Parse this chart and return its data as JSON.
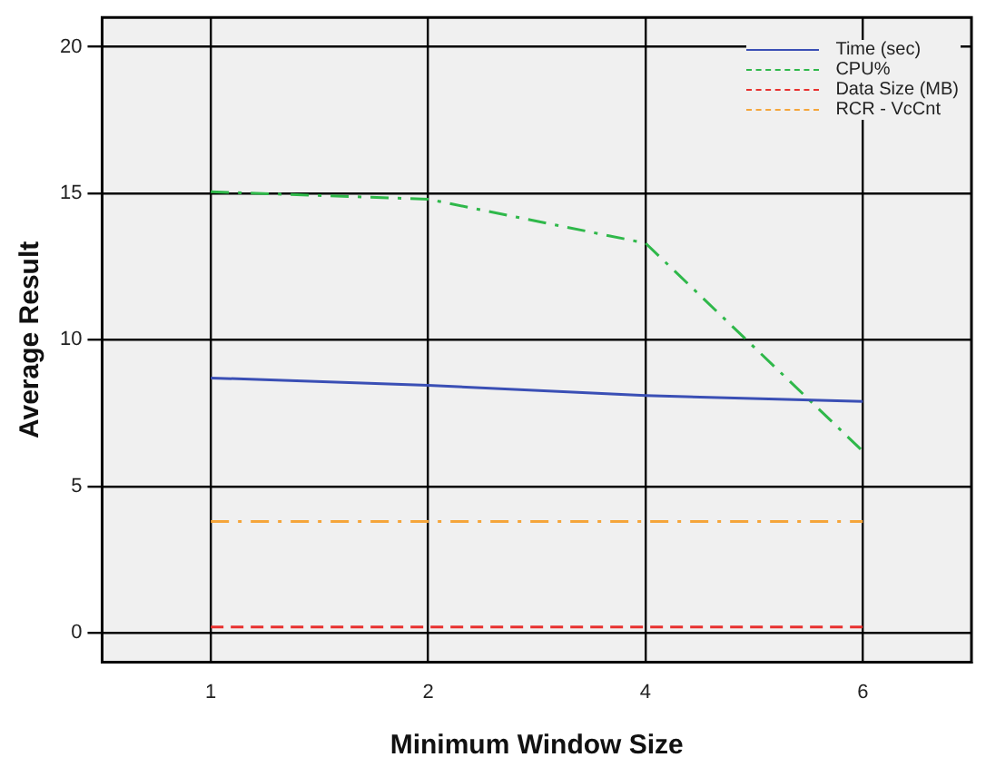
{
  "chart_data": {
    "type": "line",
    "xlabel": "Minimum Window Size",
    "ylabel": "Average Result",
    "categories": [
      "1",
      "2",
      "4",
      "6"
    ],
    "series": [
      {
        "name": "Time (sec)",
        "color": "#3a4fb5",
        "line_style": "solid",
        "values": [
          8.7,
          8.45,
          8.1,
          7.9
        ]
      },
      {
        "name": "CPU%",
        "color": "#2fb84a",
        "line_style": "dashdot",
        "values": [
          15.05,
          14.8,
          13.3,
          6.2
        ]
      },
      {
        "name": "Data Size (MB)",
        "color": "#e8312f",
        "line_style": "dashed",
        "values": [
          0.2,
          0.2,
          0.2,
          0.2
        ]
      },
      {
        "name": "RCR - VcCnt",
        "color": "#f5a53a",
        "line_style": "dashdot",
        "values": [
          3.8,
          3.8,
          3.8,
          3.8
        ]
      }
    ],
    "ylim": [
      -1,
      21
    ],
    "yticks": [
      0,
      5,
      10,
      15,
      20
    ],
    "grid": true,
    "legend": "top right",
    "marker": "none"
  }
}
